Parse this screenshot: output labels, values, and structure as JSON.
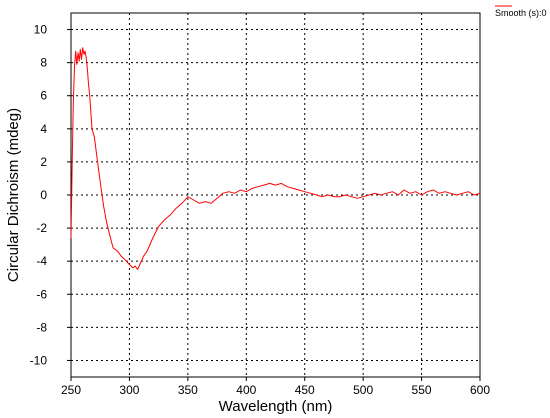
{
  "chart_data": {
    "type": "line",
    "title": "",
    "xlabel": "Wavelength (nm)",
    "ylabel": "Circular Dichroism (mdeg)",
    "xlim": [
      250,
      600
    ],
    "ylim": [
      -11,
      11
    ],
    "xticks": [
      250,
      300,
      350,
      400,
      450,
      500,
      550,
      600
    ],
    "yticks": [
      10,
      8,
      6,
      4,
      2,
      0,
      -2,
      -4,
      -6,
      -8,
      -10
    ],
    "xtick_labels": [
      "250",
      "300",
      "350",
      "400",
      "450",
      "500",
      "550",
      "600"
    ],
    "ytick_labels": [
      "10",
      "8",
      "6",
      "4",
      "2",
      "0",
      "-2",
      "-4",
      "-6",
      "-8",
      "-10"
    ],
    "grid": true,
    "legend_position": "top-right",
    "series": [
      {
        "name": "Smooth (s):0",
        "color": "#ff0000",
        "x": [
          250,
          251,
          252,
          253,
          254,
          255,
          256,
          257,
          258,
          259,
          260,
          261,
          262,
          263,
          264,
          265,
          266,
          268,
          270,
          272,
          275,
          278,
          280,
          283,
          286,
          290,
          293,
          296,
          300,
          303,
          305,
          307,
          309,
          312,
          315,
          320,
          325,
          330,
          335,
          340,
          345,
          350,
          355,
          360,
          365,
          370,
          375,
          380,
          385,
          390,
          395,
          400,
          405,
          410,
          415,
          420,
          425,
          430,
          435,
          440,
          445,
          450,
          455,
          460,
          465,
          470,
          475,
          480,
          485,
          490,
          495,
          500,
          505,
          510,
          515,
          520,
          525,
          530,
          535,
          540,
          545,
          550,
          555,
          560,
          565,
          570,
          575,
          580,
          585,
          590,
          595,
          600
        ],
        "y": [
          -2.6,
          2.0,
          5.5,
          7.8,
          8.7,
          7.9,
          8.6,
          8.1,
          8.8,
          8.2,
          8.9,
          8.5,
          8.7,
          8.3,
          7.6,
          6.7,
          6.0,
          4.0,
          3.5,
          2.4,
          0.8,
          -0.7,
          -1.5,
          -2.4,
          -3.2,
          -3.4,
          -3.7,
          -3.9,
          -4.2,
          -4.4,
          -4.3,
          -4.5,
          -4.2,
          -3.7,
          -3.4,
          -2.6,
          -1.9,
          -1.5,
          -1.2,
          -0.8,
          -0.5,
          -0.1,
          -0.3,
          -0.5,
          -0.4,
          -0.5,
          -0.2,
          0.1,
          0.2,
          0.1,
          0.3,
          0.2,
          0.4,
          0.5,
          0.6,
          0.7,
          0.6,
          0.7,
          0.5,
          0.4,
          0.3,
          0.2,
          0.1,
          0.0,
          -0.1,
          0.0,
          -0.1,
          -0.1,
          0.0,
          -0.1,
          -0.2,
          -0.1,
          0.0,
          0.1,
          0.0,
          0.1,
          0.2,
          0.0,
          0.3,
          0.1,
          0.2,
          0.0,
          0.2,
          0.3,
          0.1,
          0.2,
          0.1,
          0.0,
          0.1,
          0.2,
          0.0,
          0.1
        ]
      }
    ]
  }
}
